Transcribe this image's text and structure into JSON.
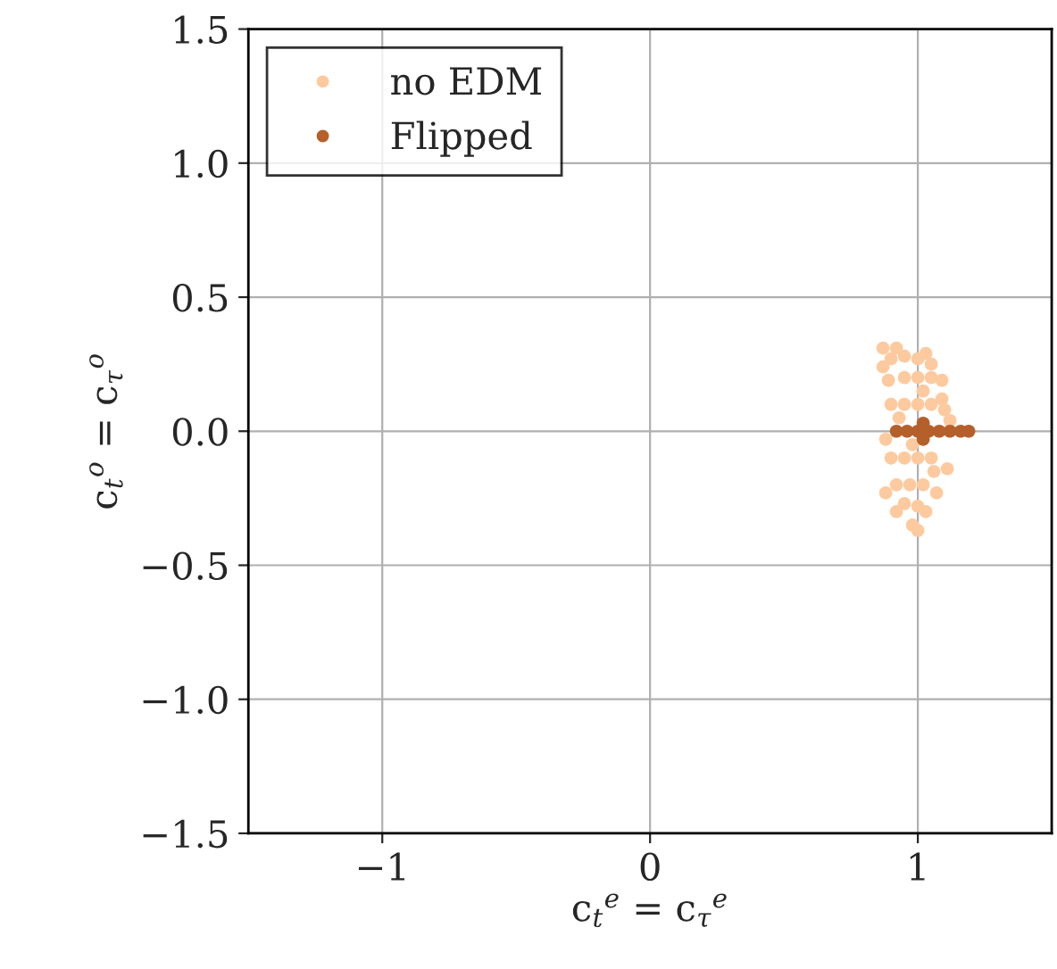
{
  "chart_data": {
    "type": "scatter",
    "xlabel": "c$_{t}$$^{e}$ = c$_{τ}$$^{e}$",
    "ylabel": "c$_{t}$$^{o}$ = c$_{τ}$$^{o}$",
    "xlim": [
      -1.5,
      1.5
    ],
    "ylim": [
      -1.5,
      1.5
    ],
    "xticks": [
      {
        "value": -1,
        "label": "−1"
      },
      0,
      1
    ],
    "yticks": [
      {
        "value": -1.5,
        "label": "−1.5"
      },
      {
        "value": -1.0,
        "label": "−1.0"
      },
      {
        "value": -0.5,
        "label": "−0.5"
      },
      {
        "value": 0.0,
        "label": "0.0"
      },
      {
        "value": 0.5,
        "label": "0.5"
      },
      {
        "value": 1.0,
        "label": "1.0"
      },
      {
        "value": 1.5,
        "label": "1.5"
      }
    ],
    "grid": true,
    "legend": "top left",
    "marker": "circle",
    "series": [
      {
        "name": "no EDM",
        "color": "#fdca9f",
        "x": [
          0.87,
          0.92,
          1.03,
          1.09,
          1.12,
          1.11,
          1.07,
          1.03,
          1.0,
          0.98,
          0.92,
          0.88,
          0.88,
          0.89,
          0.87,
          0.9,
          0.95,
          1.0,
          1.05,
          0.95,
          1.0,
          1.05,
          1.09,
          0.9,
          0.95,
          1.0,
          1.05,
          1.1,
          0.9,
          0.95,
          1.0,
          1.05,
          0.92,
          0.97,
          1.02,
          0.95,
          1.0,
          0.93,
          0.98,
          1.02,
          1.06
        ],
        "values": [
          0.31,
          0.31,
          0.29,
          0.19,
          0.04,
          -0.14,
          -0.23,
          -0.3,
          -0.37,
          -0.35,
          -0.3,
          -0.23,
          -0.03,
          0.19,
          0.24,
          0.27,
          0.28,
          0.27,
          0.25,
          0.2,
          0.2,
          0.2,
          0.12,
          0.1,
          0.1,
          0.1,
          0.1,
          0.08,
          -0.1,
          -0.1,
          -0.1,
          -0.1,
          -0.2,
          -0.2,
          -0.2,
          -0.27,
          -0.28,
          0.05,
          -0.05,
          0.15,
          -0.15
        ]
      },
      {
        "name": "Flipped",
        "color": "#b5602b",
        "x": [
          0.92,
          0.96,
          1.0,
          1.04,
          1.08,
          1.12,
          1.16,
          1.19,
          1.02,
          1.02
        ],
        "values": [
          0.0,
          0.0,
          0.0,
          0.0,
          0.0,
          0.0,
          0.0,
          0.0,
          0.03,
          -0.03
        ]
      }
    ]
  }
}
